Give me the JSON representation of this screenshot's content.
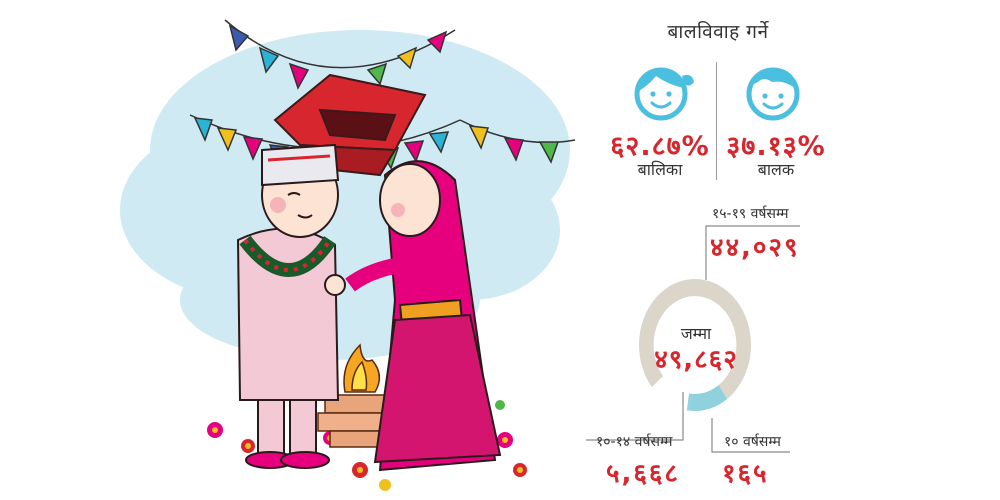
{
  "title": "बालविवाह गर्ने",
  "gender": {
    "girls": {
      "percent": "६२.८७%",
      "label": "बालिका",
      "icon": "girl-face-icon"
    },
    "boys": {
      "percent": "३७.१३%",
      "label": "बालक",
      "icon": "boy-face-icon"
    }
  },
  "totals": {
    "label": "जम्मा",
    "value": "४९,८६२"
  },
  "colors": {
    "accent_red": "#d7262d",
    "donut_main": "#dcd5c9",
    "donut_secondary": "#8fd1dd",
    "icon_blue": "#4bbfe0"
  },
  "chart_data": [
    {
      "type": "bar",
      "categories": [
        "बालिका",
        "बालक"
      ],
      "values": [
        62.87,
        37.13
      ]
    },
    {
      "type": "pie",
      "donut": true,
      "total": 49862,
      "categories": [
        "१५-१९ वर्षसम्म",
        "१०-१४ वर्षसम्म",
        "१० वर्षसम्म"
      ],
      "values": [
        44029,
        5668,
        165
      ],
      "value_labels": [
        "४४,०२९",
        "५,६६८",
        "१६५"
      ],
      "colors": [
        "#dcd5c9",
        "#8fd1dd",
        "#8fd1dd"
      ]
    }
  ]
}
